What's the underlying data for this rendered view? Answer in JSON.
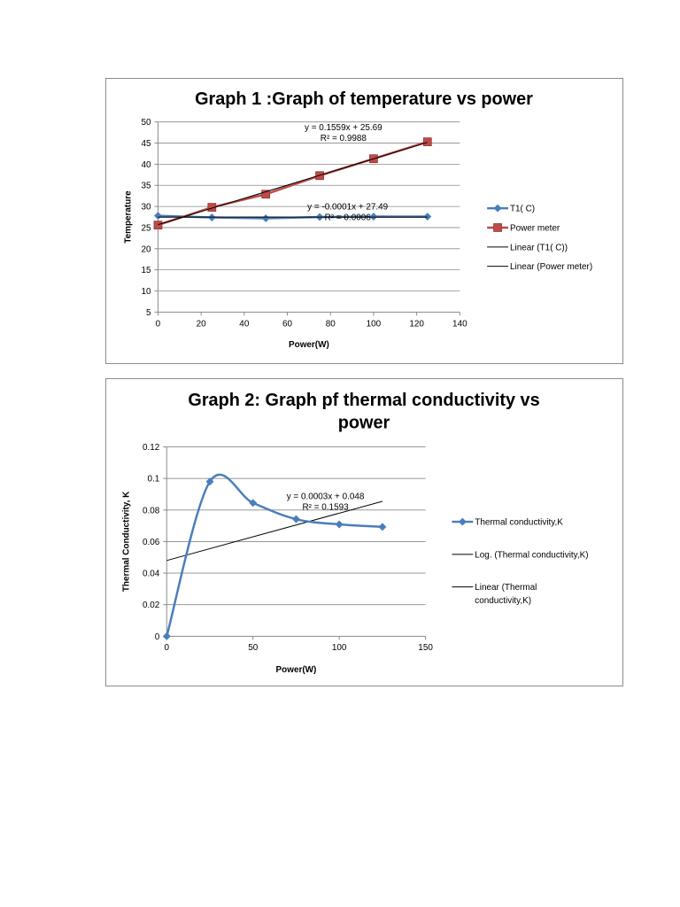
{
  "chart_data": [
    {
      "type": "line",
      "title": "Graph 1 :Graph of temperature vs power",
      "xlabel": "Power(W)",
      "ylabel": "Temperature",
      "xlim": [
        0,
        140
      ],
      "ylim": [
        5,
        50
      ],
      "xticks": [
        "0",
        "20",
        "40",
        "60",
        "80",
        "100",
        "120",
        "140"
      ],
      "yticks": [
        "5",
        "10",
        "15",
        "20",
        "25",
        "30",
        "35",
        "40",
        "45",
        "50"
      ],
      "grid": true,
      "legend_position": "right",
      "series": [
        {
          "name": "T1( C)",
          "color": "#4a7ebb",
          "marker": "diamond",
          "smooth": false,
          "x": [
            0,
            25,
            50,
            75,
            100,
            125
          ],
          "y": [
            27.8,
            27.4,
            27.2,
            27.5,
            27.6,
            27.6
          ]
        },
        {
          "name": "Power meter",
          "color": "#be4b48",
          "marker": "square",
          "smooth": false,
          "x": [
            0,
            25,
            50,
            75,
            100,
            125
          ],
          "y": [
            25.6,
            29.8,
            32.9,
            37.3,
            41.3,
            45.3
          ]
        }
      ],
      "trendlines": [
        {
          "name": "Linear (T1( C))",
          "type": "linear",
          "slope": -0.0001,
          "intercept": 27.49,
          "x_range": [
            0,
            125
          ],
          "color": "#000000"
        },
        {
          "name": "Linear (Power meter)",
          "type": "linear",
          "slope": 0.1559,
          "intercept": 25.69,
          "x_range": [
            0,
            125
          ],
          "color": "#000000"
        }
      ],
      "annotations": [
        {
          "line1": "y = 0.1559x + 25.69",
          "line2": "R² = 0.9988",
          "x": 86,
          "y": 48
        },
        {
          "line1": "y = -0.0001x + 27.49",
          "line2": "R² = 0.0006",
          "x": 88,
          "y": 29.3
        }
      ]
    },
    {
      "type": "line",
      "title": "Graph 2: Graph pf thermal conductivity vs power",
      "title_lines": [
        "Graph 2: Graph pf thermal conductivity vs",
        "power"
      ],
      "xlabel": "Power(W)",
      "ylabel": "Thermal Conductivity, K",
      "xlim": [
        0,
        150
      ],
      "ylim": [
        0,
        0.12
      ],
      "xticks": [
        "0",
        "50",
        "100",
        "150"
      ],
      "yticks": [
        "0",
        "0.02",
        "0.04",
        "0.06",
        "0.08",
        "0.1",
        "0.12"
      ],
      "grid": true,
      "legend_position": "right",
      "series": [
        {
          "name": "Thermal conductivity,K",
          "color": "#4a7ebb",
          "marker": "diamond",
          "smooth": true,
          "x": [
            0,
            25,
            50,
            75,
            100,
            125
          ],
          "y": [
            0,
            0.098,
            0.0845,
            0.0742,
            0.0709,
            0.0693
          ]
        }
      ],
      "trendlines": [
        {
          "name": "Log. (Thermal conductivity,K)",
          "type": "log",
          "x_range": [
            0,
            125
          ],
          "color": "#000000"
        },
        {
          "name": "Linear (Thermal conductivity,K)",
          "name_lines": [
            "Linear (Thermal",
            "conductivity,K)"
          ],
          "type": "linear",
          "slope": 0.0003,
          "intercept": 0.048,
          "x_range": [
            0,
            125
          ],
          "color": "#000000"
        }
      ],
      "annotations": [
        {
          "line1": "y = 0.0003x + 0.048",
          "line2": "R² = 0.1593",
          "x": 92,
          "y": 0.087
        }
      ]
    }
  ]
}
